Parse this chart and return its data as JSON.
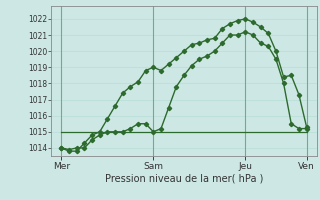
{
  "background_color": "#cde8e4",
  "grid_color": "#b8ddd8",
  "line_color": "#2d6a2d",
  "vline_color": "#7aaa7a",
  "ylim": [
    1013.5,
    1022.8
  ],
  "yticks": [
    1014,
    1015,
    1016,
    1017,
    1018,
    1019,
    1020,
    1021,
    1022
  ],
  "xlabel": "Pression niveau de la mer( hPa )",
  "xtick_labels": [
    "Mer",
    "Sam",
    "Jeu",
    "Ven"
  ],
  "xtick_positions": [
    0,
    36,
    72,
    96
  ],
  "xlim": [
    -4,
    100
  ],
  "line1_x": [
    0,
    3,
    6,
    9,
    12,
    15,
    18,
    21,
    24,
    27,
    30,
    33,
    36,
    39,
    42,
    45,
    48,
    51,
    54,
    57,
    60,
    63,
    66,
    69,
    72,
    75,
    78,
    81,
    84,
    87,
    90,
    93,
    96
  ],
  "line1_y": [
    1014.0,
    1013.8,
    1013.8,
    1014.3,
    1014.8,
    1015.0,
    1015.8,
    1016.6,
    1017.4,
    1017.8,
    1018.1,
    1018.8,
    1019.0,
    1018.8,
    1019.2,
    1019.6,
    1020.0,
    1020.4,
    1020.5,
    1020.7,
    1020.8,
    1021.4,
    1021.7,
    1021.9,
    1022.0,
    1021.8,
    1021.5,
    1021.1,
    1020.0,
    1018.4,
    1018.5,
    1017.3,
    1015.3
  ],
  "line2_x": [
    0,
    3,
    6,
    9,
    12,
    15,
    18,
    21,
    24,
    27,
    30,
    33,
    36,
    39,
    42,
    45,
    48,
    51,
    54,
    57,
    60,
    63,
    66,
    69,
    72,
    75,
    78,
    81,
    84,
    87,
    90,
    93,
    96
  ],
  "line2_y": [
    1014.0,
    1013.9,
    1014.0,
    1014.0,
    1014.5,
    1014.8,
    1015.0,
    1015.0,
    1015.0,
    1015.2,
    1015.5,
    1015.5,
    1015.0,
    1015.2,
    1016.5,
    1017.8,
    1018.5,
    1019.1,
    1019.5,
    1019.7,
    1020.0,
    1020.5,
    1021.0,
    1021.0,
    1021.2,
    1021.0,
    1020.5,
    1020.3,
    1019.5,
    1018.0,
    1015.5,
    1015.2,
    1015.2
  ],
  "line3_x": [
    0,
    96
  ],
  "line3_y": [
    1015.0,
    1015.0
  ],
  "vline_positions": [
    0,
    36,
    72,
    96
  ],
  "figsize": [
    3.2,
    2.0
  ],
  "dpi": 100
}
